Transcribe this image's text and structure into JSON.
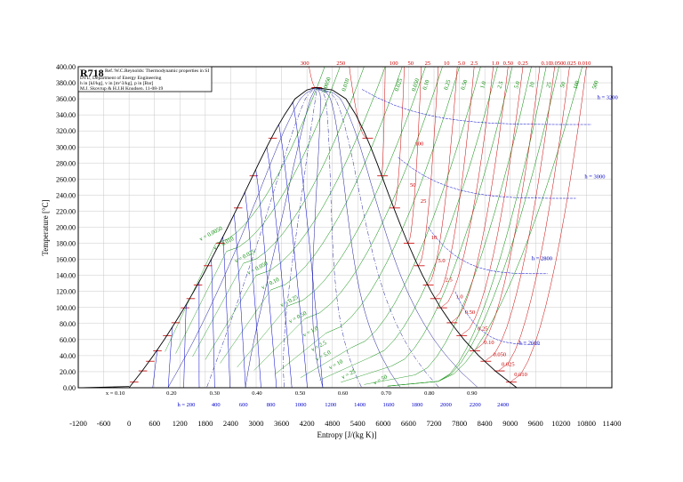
{
  "chart_data": {
    "type": "line",
    "title": "R718",
    "info_lines": [
      "Ref.:W.C.Reynolds: Thermodynamic properties in SI",
      "DTU, Department of Energy Engineering",
      "h in [kJ/kg], v in [m^3/kg], p in [Bar]",
      "M.J. Skovrup & H.J.H Knudsen. 11-08-19"
    ],
    "xlabel": "Entropy [J/(kg K)]",
    "ylabel": "Temperature [°C]",
    "xlim": [
      -1200,
      11400
    ],
    "ylim": [
      0,
      400
    ],
    "x_ticks": [
      "-1200",
      "-600",
      "0",
      "600",
      "1200",
      "1800",
      "2400",
      "3000",
      "3600",
      "4200",
      "4800",
      "5400",
      "6000",
      "6600",
      "7200",
      "7800",
      "8400",
      "9000",
      "9600",
      "10200",
      "10800",
      "11400"
    ],
    "y_ticks": [
      "0.00",
      "20.00",
      "40.00",
      "60.00",
      "80.00",
      "100.00",
      "120.00",
      "140.00",
      "160.00",
      "180.00",
      "200.00",
      "220.00",
      "240.00",
      "260.00",
      "280.00",
      "300.00",
      "320.00",
      "340.00",
      "360.00",
      "380.00",
      "400.00"
    ],
    "quality_labels": [
      "x = 0.10",
      "0.20",
      "0.30",
      "0.40",
      "0.50",
      "0.60",
      "0.70",
      "0.80",
      "0.90"
    ],
    "enthalpy_axis_labels": [
      "h = 200",
      "400",
      "600",
      "800",
      "1000",
      "1200",
      "1400",
      "1600",
      "1800",
      "2000",
      "2200",
      "2400"
    ],
    "pressure_top_labels": [
      "300",
      "250",
      "100",
      "50",
      "25",
      "10",
      "5.0",
      "2.5",
      "1.0",
      "0.50",
      "0.25",
      "0.10",
      "0.050",
      "0.025",
      "0.010"
    ],
    "isobar_labels": [
      "100",
      "50",
      "25",
      "10",
      "5.0",
      "2.5",
      "1.0",
      "0.50",
      "0.25",
      "0.10",
      "0.050",
      "0.025",
      "0.010"
    ],
    "volume_top_labels": [
      "0.0050",
      "0.010",
      "0.025",
      "0.050",
      "0.10",
      "0.25",
      "0.50",
      "1.0",
      "2.5",
      "5.0",
      "10",
      "25",
      "50",
      "100",
      "500"
    ],
    "volume_dome_labels": [
      "v = 0.0050",
      "v = 0.010",
      "v = 0.025",
      "v = 0.050",
      "v = 0.10",
      "v = 0.25",
      "v = 0.50",
      "v = 1.0",
      "v = 2.5",
      "v = 5.0",
      "v = 10",
      "v = 25",
      "v = 50"
    ],
    "enthalpy_curve_labels": [
      "h = 3200",
      "h = 3000",
      "h = 2800",
      "h = 2600"
    ],
    "saturation_dome": {
      "liquid": [
        [
          0,
          0.01
        ],
        [
          297,
          20
        ],
        [
          572,
          40
        ],
        [
          831,
          60
        ],
        [
          1075,
          80
        ],
        [
          1307,
          100
        ],
        [
          1527,
          120
        ],
        [
          1739,
          140
        ],
        [
          1942,
          160
        ],
        [
          2139,
          180
        ],
        [
          2331,
          200
        ],
        [
          2518,
          220
        ],
        [
          2702,
          240
        ],
        [
          2884,
          260
        ],
        [
          3065,
          280
        ],
        [
          3253,
          300
        ],
        [
          3450,
          320
        ],
        [
          3670,
          340
        ],
        [
          3920,
          360
        ],
        [
          4200,
          371
        ],
        [
          4407,
          374
        ]
      ],
      "vapor": [
        [
          9155,
          0.01
        ],
        [
          8666,
          20
        ],
        [
          8255,
          40
        ],
        [
          7908,
          60
        ],
        [
          7612,
          80
        ],
        [
          7354,
          100
        ],
        [
          7130,
          120
        ],
        [
          6930,
          140
        ],
        [
          6750,
          160
        ],
        [
          6585,
          180
        ],
        [
          6430,
          200
        ],
        [
          6280,
          220
        ],
        [
          6136,
          240
        ],
        [
          5994,
          260
        ],
        [
          5853,
          280
        ],
        [
          5705,
          300
        ],
        [
          5542,
          320
        ],
        [
          5356,
          340
        ],
        [
          5120,
          360
        ],
        [
          4800,
          371
        ],
        [
          4407,
          374
        ]
      ]
    },
    "colors": {
      "isobar": "#cc0000",
      "isochore": "#008800",
      "enthalpy": "#0000cc",
      "dome": "#000000"
    }
  }
}
